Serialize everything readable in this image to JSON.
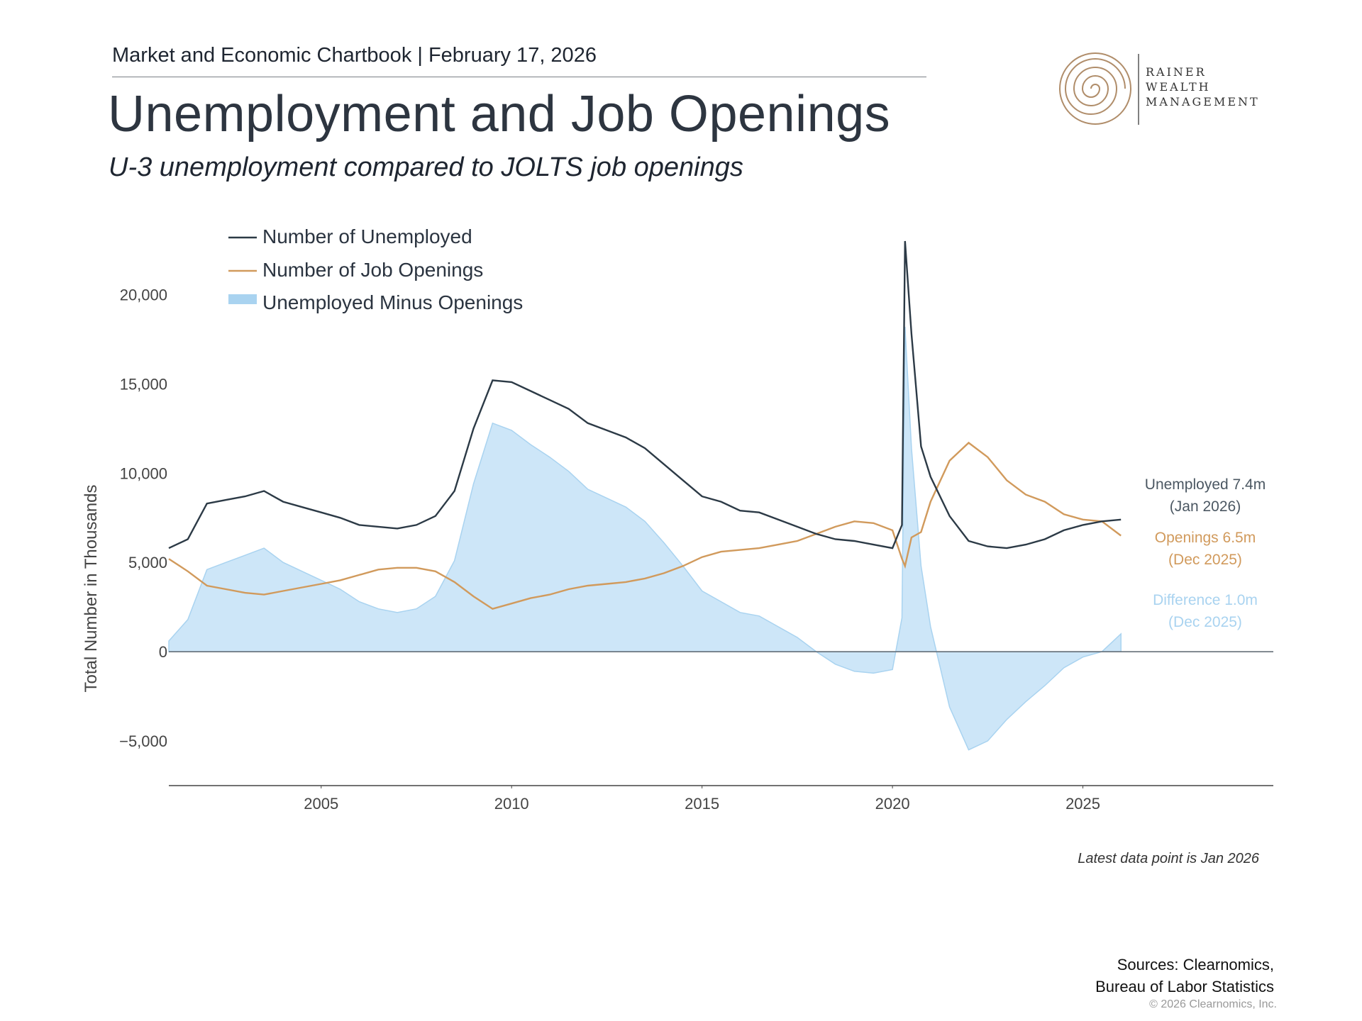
{
  "header": {
    "chartbook": "Market and Economic Chartbook | February 17, 2026",
    "title": "Unemployment and Job Openings",
    "subtitle": "U-3 unemployment compared to JOLTS job openings"
  },
  "logo": {
    "line1": "RAINER",
    "line2": "WEALTH",
    "line3": "MANAGEMENT"
  },
  "colors": {
    "unemployed": "#2c3a46",
    "openings": "#d19a5c",
    "difference": "#cde6f8",
    "difference_text": "#a9d3f0",
    "axis": "#666f78"
  },
  "chart_data": {
    "type": "line",
    "title": "Unemployment and Job Openings",
    "ylabel": "Total Number in Thousands",
    "xlabel": "",
    "xlim": [
      2001.0,
      2030.0
    ],
    "ylim": [
      -7500,
      23000
    ],
    "yticks": [
      -5000,
      0,
      5000,
      10000,
      15000,
      20000
    ],
    "ytick_labels": [
      "−5,000",
      "0",
      "5,000",
      "10,000",
      "15,000",
      "20,000"
    ],
    "xticks": [
      2005,
      2010,
      2015,
      2020,
      2025
    ],
    "xtick_labels": [
      "2005",
      "2010",
      "2015",
      "2020",
      "2025"
    ],
    "legend": [
      "Number of Unemployed",
      "Number of Job Openings",
      "Unemployed Minus Openings"
    ],
    "series": [
      {
        "name": "Number of Unemployed",
        "x": [
          2001.0,
          2001.5,
          2002.0,
          2002.5,
          2003.0,
          2003.5,
          2004.0,
          2004.5,
          2005.0,
          2005.5,
          2006.0,
          2006.5,
          2007.0,
          2007.5,
          2008.0,
          2008.5,
          2009.0,
          2009.5,
          2010.0,
          2010.5,
          2011.0,
          2011.5,
          2012.0,
          2012.5,
          2013.0,
          2013.5,
          2014.0,
          2014.5,
          2015.0,
          2015.5,
          2016.0,
          2016.5,
          2017.0,
          2017.5,
          2018.0,
          2018.5,
          2019.0,
          2019.5,
          2020.0,
          2020.25,
          2020.33,
          2020.5,
          2020.75,
          2021.0,
          2021.5,
          2022.0,
          2022.5,
          2023.0,
          2023.5,
          2024.0,
          2024.5,
          2025.0,
          2025.5,
          2026.0
        ],
        "values": [
          5800,
          6300,
          8300,
          8500,
          8700,
          9000,
          8400,
          8100,
          7800,
          7500,
          7100,
          7000,
          6900,
          7100,
          7600,
          9000,
          12500,
          15200,
          15100,
          14600,
          14100,
          13600,
          12800,
          12400,
          12000,
          11400,
          10500,
          9600,
          8700,
          8400,
          7900,
          7800,
          7400,
          7000,
          6600,
          6300,
          6200,
          6000,
          5800,
          7100,
          23000,
          17800,
          11500,
          9800,
          7600,
          6200,
          5900,
          5800,
          6000,
          6300,
          6800,
          7100,
          7300,
          7400
        ]
      },
      {
        "name": "Number of Job Openings",
        "x": [
          2001.0,
          2001.5,
          2002.0,
          2002.5,
          2003.0,
          2003.5,
          2004.0,
          2004.5,
          2005.0,
          2005.5,
          2006.0,
          2006.5,
          2007.0,
          2007.5,
          2008.0,
          2008.5,
          2009.0,
          2009.5,
          2010.0,
          2010.5,
          2011.0,
          2011.5,
          2012.0,
          2012.5,
          2013.0,
          2013.5,
          2014.0,
          2014.5,
          2015.0,
          2015.5,
          2016.0,
          2016.5,
          2017.0,
          2017.5,
          2018.0,
          2018.5,
          2019.0,
          2019.5,
          2020.0,
          2020.25,
          2020.33,
          2020.5,
          2020.75,
          2021.0,
          2021.5,
          2022.0,
          2022.5,
          2023.0,
          2023.5,
          2024.0,
          2024.5,
          2025.0,
          2025.5,
          2026.0
        ],
        "values": [
          5200,
          4500,
          3700,
          3500,
          3300,
          3200,
          3400,
          3600,
          3800,
          4000,
          4300,
          4600,
          4700,
          4700,
          4500,
          3900,
          3100,
          2400,
          2700,
          3000,
          3200,
          3500,
          3700,
          3800,
          3900,
          4100,
          4400,
          4800,
          5300,
          5600,
          5700,
          5800,
          6000,
          6200,
          6600,
          7000,
          7300,
          7200,
          6800,
          5200,
          4800,
          6400,
          6700,
          8400,
          10700,
          11700,
          10900,
          9600,
          8800,
          8400,
          7700,
          7400,
          7300,
          6500
        ]
      },
      {
        "name": "Unemployed Minus Openings",
        "x": [
          2001.0,
          2001.5,
          2002.0,
          2002.5,
          2003.0,
          2003.5,
          2004.0,
          2004.5,
          2005.0,
          2005.5,
          2006.0,
          2006.5,
          2007.0,
          2007.5,
          2008.0,
          2008.5,
          2009.0,
          2009.5,
          2010.0,
          2010.5,
          2011.0,
          2011.5,
          2012.0,
          2012.5,
          2013.0,
          2013.5,
          2014.0,
          2014.5,
          2015.0,
          2015.5,
          2016.0,
          2016.5,
          2017.0,
          2017.5,
          2018.0,
          2018.5,
          2019.0,
          2019.5,
          2020.0,
          2020.25,
          2020.33,
          2020.5,
          2020.75,
          2021.0,
          2021.5,
          2022.0,
          2022.5,
          2023.0,
          2023.5,
          2024.0,
          2024.5,
          2025.0,
          2025.5,
          2026.0
        ],
        "values": [
          600,
          1800,
          4600,
          5000,
          5400,
          5800,
          5000,
          4500,
          4000,
          3500,
          2800,
          2400,
          2200,
          2400,
          3100,
          5100,
          9400,
          12800,
          12400,
          11600,
          10900,
          10100,
          9100,
          8600,
          8100,
          7300,
          6100,
          4800,
          3400,
          2800,
          2200,
          2000,
          1400,
          800,
          0,
          -700,
          -1100,
          -1200,
          -1000,
          1900,
          18200,
          11400,
          4800,
          1400,
          -3100,
          -5500,
          -5000,
          -3800,
          -2800,
          -1900,
          -900,
          -300,
          0,
          1000
        ]
      }
    ],
    "annotations": [
      {
        "label": "Unemployed 7.4m",
        "sub": "(Jan 2026)"
      },
      {
        "label": "Openings 6.5m",
        "sub": "(Dec 2025)"
      },
      {
        "label": "Difference 1.0m",
        "sub": "(Dec 2025)"
      }
    ],
    "note": "Latest data point is Jan 2026"
  },
  "footer": {
    "sources_line1": "Sources: Clearnomics,",
    "sources_line2": "Bureau of Labor Statistics",
    "copyright": "© 2026 Clearnomics, Inc."
  }
}
